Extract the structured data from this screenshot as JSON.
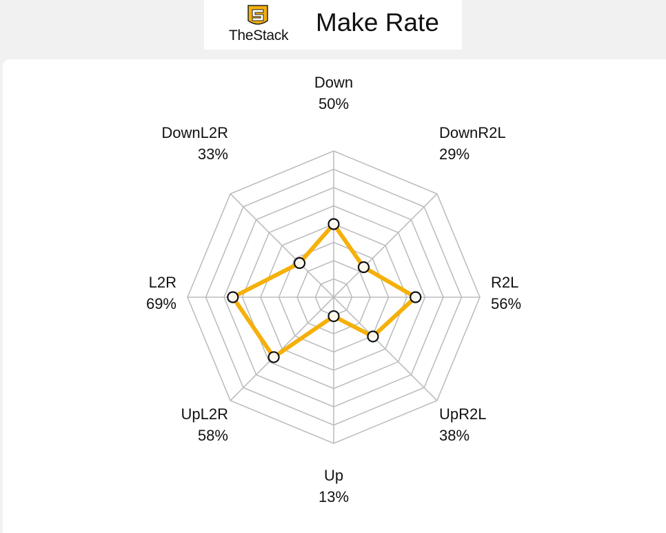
{
  "header": {
    "logo_text": "TheStack",
    "logo_icon": "stack-logo-icon",
    "title": "Make Rate"
  },
  "chart_data": {
    "type": "radar",
    "categories": [
      "Down",
      "DownR2L",
      "R2L",
      "UpR2L",
      "Up",
      "UpL2R",
      "L2R",
      "DownL2R"
    ],
    "category_labels": [
      "Down",
      "DownR2L",
      "R2L",
      "UpR2L",
      "Up",
      "UpL2R",
      "L2R",
      "DownL2R"
    ],
    "value_labels": [
      "50%",
      "29%",
      "56%",
      "38%",
      "13%",
      "58%",
      "69%",
      "33%"
    ],
    "series": [
      {
        "values": [
          50,
          29,
          56,
          38,
          13,
          58,
          69,
          33
        ]
      }
    ],
    "rlim": [
      0,
      100
    ],
    "grid_rings": 8,
    "grid": true,
    "colors": {
      "series": "#f5b00a",
      "marker_edge": "#111111",
      "grid": "#bdbdbd"
    }
  }
}
